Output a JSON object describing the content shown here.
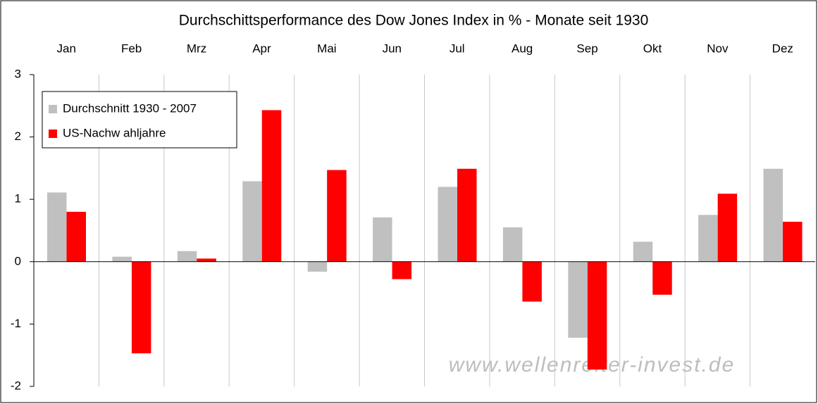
{
  "chart_data": {
    "type": "bar",
    "title": "Durchschittsperformance des Dow Jones Index in % - Monate seit 1930",
    "categories": [
      "Jan",
      "Feb",
      "Mrz",
      "Apr",
      "Mai",
      "Jun",
      "Jul",
      "Aug",
      "Sep",
      "Okt",
      "Nov",
      "Dez"
    ],
    "series": [
      {
        "name": "Durchschnitt 1930 - 2007",
        "color": "#c0c0c0",
        "values": [
          1.11,
          0.08,
          0.17,
          1.29,
          -0.16,
          0.71,
          1.2,
          0.55,
          -1.22,
          0.32,
          0.75,
          1.49
        ]
      },
      {
        "name": "US-Nachw ahljahre",
        "color": "#ff0000",
        "values": [
          0.8,
          -1.47,
          0.05,
          2.43,
          1.47,
          -0.28,
          1.49,
          -0.64,
          -1.73,
          -0.53,
          1.09,
          0.64
        ]
      }
    ],
    "ylim": [
      -2,
      3
    ],
    "yticks": [
      -2,
      -1,
      0,
      1,
      2,
      3
    ],
    "annotation": "www.wellenreiter-invest.de",
    "legend": "upper left"
  }
}
